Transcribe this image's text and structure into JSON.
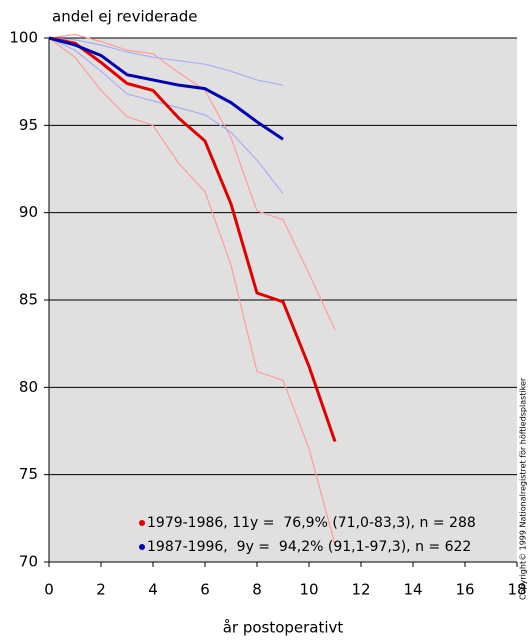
{
  "chart_data": {
    "type": "line",
    "title": "andel ej reviderade",
    "x_label": "år postoperativt",
    "copyright": "Copyright© 1999 Nationalregistret för höftledsplastiker",
    "xlim": [
      0,
      18
    ],
    "xticks": [
      0,
      2,
      4,
      6,
      8,
      10,
      12,
      14,
      16,
      18
    ],
    "ylim": [
      70,
      100
    ],
    "yticks": [
      70,
      75,
      80,
      85,
      90,
      95,
      100
    ],
    "grid": true,
    "background": "#e0e0e0",
    "legend": "bottom-left",
    "series": [
      {
        "color": "#ff9c9c",
        "x": [
          0,
          1,
          2,
          3,
          4,
          5,
          6,
          7,
          8,
          9,
          10,
          11
        ],
        "values": [
          100,
          100.2,
          99.8,
          99.3,
          99.1,
          98.0,
          97.0,
          94.3,
          90.1,
          89.6,
          86.5,
          83.3
        ]
      },
      {
        "color": "#ff9c9c",
        "x": [
          0,
          1,
          2,
          3,
          4,
          5,
          6,
          7,
          8,
          9,
          10,
          11
        ],
        "values": [
          100,
          98.9,
          97.0,
          95.5,
          95.0,
          92.8,
          91.2,
          87.0,
          80.9,
          80.4,
          76.5,
          71.0
        ]
      },
      {
        "color": "#a8b0f0",
        "x": [
          0,
          1,
          2,
          3,
          4,
          5,
          6,
          7,
          8,
          9
        ],
        "values": [
          100,
          99.9,
          99.6,
          99.2,
          98.9,
          98.7,
          98.5,
          98.1,
          97.6,
          97.3
        ]
      },
      {
        "color": "#a8b0f0",
        "x": [
          0,
          1,
          2,
          3,
          4,
          5,
          6,
          7,
          8,
          9
        ],
        "values": [
          100,
          99.3,
          98.1,
          96.8,
          96.4,
          96.0,
          95.6,
          94.6,
          93.0,
          91.1
        ]
      },
      {
        "name": "1979-1986, 11y =  76,9% (71,0-83,3), n = 288",
        "color": "#e00000",
        "x": [
          0,
          1,
          2,
          3,
          4,
          5,
          6,
          7,
          8,
          9,
          10,
          11
        ],
        "values": [
          100,
          99.7,
          98.6,
          97.4,
          97.0,
          95.4,
          94.1,
          90.5,
          85.4,
          84.9,
          81.2,
          76.9
        ]
      },
      {
        "name": "1987-1996,  9y =  94,2% (91,1-97,3), n = 622",
        "color": "#0000b0",
        "x": [
          0,
          1,
          2,
          3,
          4,
          5,
          6,
          7,
          8,
          9
        ],
        "values": [
          100,
          99.6,
          99.0,
          97.9,
          97.6,
          97.3,
          97.1,
          96.3,
          95.2,
          94.2
        ]
      }
    ]
  }
}
